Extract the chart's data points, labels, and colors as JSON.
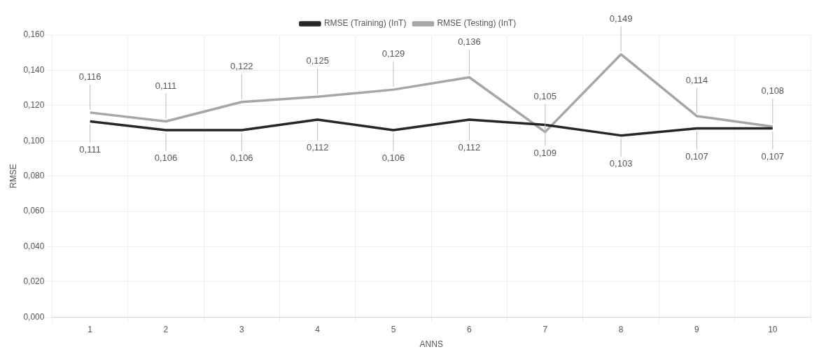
{
  "chart_data": {
    "type": "line",
    "xlabel": "ANNS",
    "ylabel": "RMSE",
    "categories": [
      "1",
      "2",
      "3",
      "4",
      "5",
      "6",
      "7",
      "8",
      "9",
      "10"
    ],
    "series": [
      {
        "name": "RMSE (Training) (InT)",
        "color": "#262626",
        "values": [
          0.111,
          0.106,
          0.106,
          0.112,
          0.106,
          0.112,
          0.109,
          0.103,
          0.107,
          0.107
        ],
        "value_labels": [
          "0,111",
          "0,106",
          "0,106",
          "0,112",
          "0,106",
          "0,112",
          "0,109",
          "0,103",
          "0,107",
          "0,107"
        ]
      },
      {
        "name": "RMSE (Testing) (InT)",
        "color": "#a6a6a6",
        "values": [
          0.116,
          0.111,
          0.122,
          0.125,
          0.129,
          0.136,
          0.105,
          0.149,
          0.114,
          0.108
        ],
        "value_labels": [
          "0,116",
          "0,111",
          "0,122",
          "0,125",
          "0,129",
          "0,136",
          "0,105",
          "0,149",
          "0,114",
          "0,108"
        ]
      }
    ],
    "ylim": [
      0,
      0.16
    ],
    "yticks": [
      {
        "value": 0,
        "label": "0,000"
      },
      {
        "value": 0.02,
        "label": "0,020"
      },
      {
        "value": 0.04,
        "label": "0,040"
      },
      {
        "value": 0.06,
        "label": "0,060"
      },
      {
        "value": 0.08,
        "label": "0,080"
      },
      {
        "value": 0.1,
        "label": "0,100"
      },
      {
        "value": 0.12,
        "label": "0,120"
      },
      {
        "value": 0.14,
        "label": "0,140"
      },
      {
        "value": 0.16,
        "label": "0,160"
      }
    ],
    "grid": true,
    "legend": "top",
    "marker": "none",
    "line_style": "solid"
  }
}
